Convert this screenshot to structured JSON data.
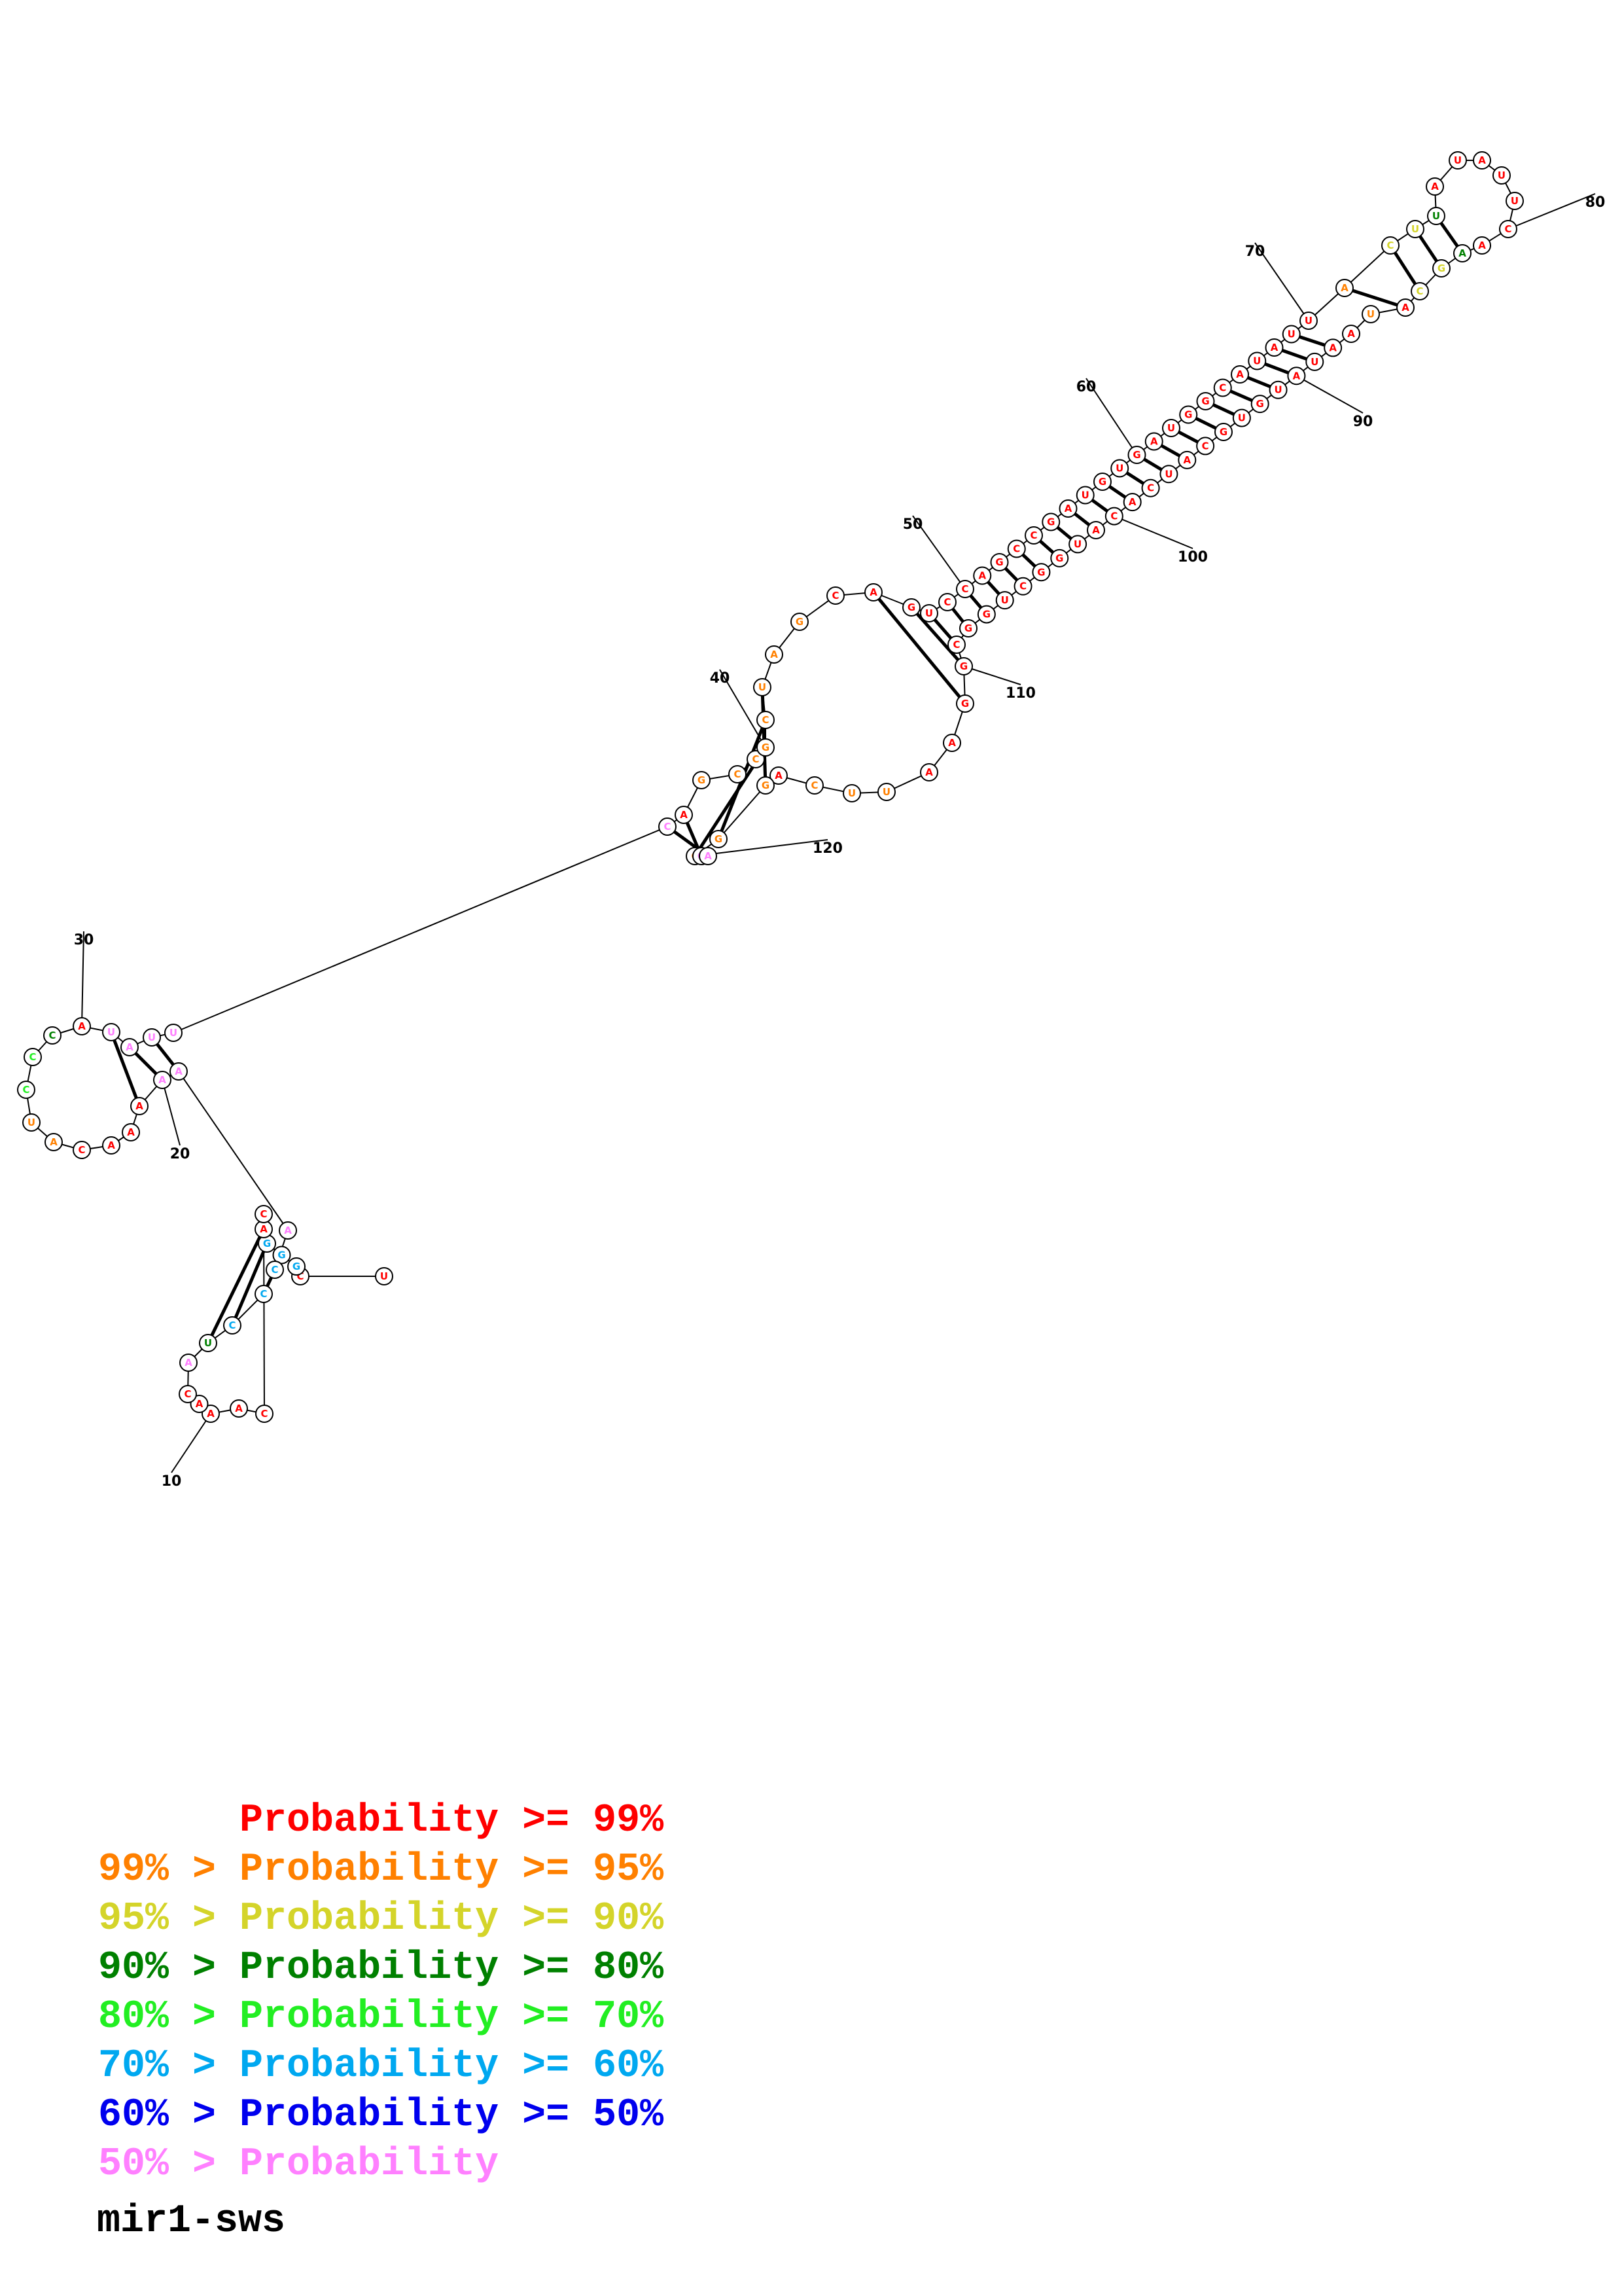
{
  "title": "mir1-sws",
  "colors": {
    "p99": "#ff0000",
    "p95": "#ff8000",
    "p90": "#d4d42a",
    "p80": "#008000",
    "p70": "#22ee22",
    "p60": "#00a8f0",
    "p50": "#0000ee",
    "plow": "#ff80ff"
  },
  "legend": [
    {
      "text": "      Probability >= 99%",
      "color": "p99"
    },
    {
      "text": "99% > Probability >= 95%",
      "color": "p95"
    },
    {
      "text": "95% > Probability >= 90%",
      "color": "p90"
    },
    {
      "text": "90% > Probability >= 80%",
      "color": "p80"
    },
    {
      "text": "80% > Probability >= 70%",
      "color": "p70"
    },
    {
      "text": "70% > Probability >= 60%",
      "color": "p60"
    },
    {
      "text": "60% > Probability >= 50%",
      "color": "p50"
    },
    {
      "text": "50% > Probability",
      "color": "plow"
    }
  ],
  "nucleotides": [
    {
      "b": "U",
      "p": "p99"
    },
    {
      "b": "C",
      "p": "p99"
    },
    {
      "b": "G",
      "p": "p60"
    },
    {
      "b": "G",
      "p": "p60"
    },
    {
      "b": "G",
      "p": "p60"
    },
    {
      "b": "A",
      "p": "p99"
    },
    {
      "b": "C",
      "p": "p99"
    },
    {
      "b": "C",
      "p": "p99"
    },
    {
      "b": "A",
      "p": "p99"
    },
    {
      "b": "A",
      "p": "p99"
    },
    {
      "b": "A",
      "p": "p99"
    },
    {
      "b": "C",
      "p": "p99"
    },
    {
      "b": "A",
      "p": "plow"
    },
    {
      "b": "U",
      "p": "p80"
    },
    {
      "b": "C",
      "p": "p60"
    },
    {
      "b": "C",
      "p": "p60"
    },
    {
      "b": "C",
      "p": "p60"
    },
    {
      "b": "A",
      "p": "plow"
    },
    {
      "b": "A",
      "p": "plow"
    },
    {
      "b": "A",
      "p": "plow"
    },
    {
      "b": "A",
      "p": "p99"
    },
    {
      "b": "A",
      "p": "p99"
    },
    {
      "b": "A",
      "p": "p99"
    },
    {
      "b": "C",
      "p": "p99"
    },
    {
      "b": "A",
      "p": "p95"
    },
    {
      "b": "U",
      "p": "p95"
    },
    {
      "b": "C",
      "p": "p70"
    },
    {
      "b": "C",
      "p": "p70"
    },
    {
      "b": "C",
      "p": "p80"
    },
    {
      "b": "A",
      "p": "p99"
    },
    {
      "b": "U",
      "p": "plow"
    },
    {
      "b": "A",
      "p": "plow"
    },
    {
      "b": "U",
      "p": "plow"
    },
    {
      "b": "U",
      "p": "plow"
    },
    {
      "b": "C",
      "p": "plow"
    },
    {
      "b": "A",
      "p": "p99"
    },
    {
      "b": "G",
      "p": "p95"
    },
    {
      "b": "C",
      "p": "p95"
    },
    {
      "b": "C",
      "p": "p95"
    },
    {
      "b": "G",
      "p": "p95"
    },
    {
      "b": "C",
      "p": "p95"
    },
    {
      "b": "U",
      "p": "p95"
    },
    {
      "b": "A",
      "p": "p95"
    },
    {
      "b": "G",
      "p": "p95"
    },
    {
      "b": "C",
      "p": "p99"
    },
    {
      "b": "A",
      "p": "p99"
    },
    {
      "b": "G",
      "p": "p99"
    },
    {
      "b": "U",
      "p": "p99"
    },
    {
      "b": "C",
      "p": "p99"
    },
    {
      "b": "C",
      "p": "p99"
    },
    {
      "b": "A",
      "p": "p99"
    },
    {
      "b": "G",
      "p": "p99"
    },
    {
      "b": "C",
      "p": "p99"
    },
    {
      "b": "C",
      "p": "p99"
    },
    {
      "b": "G",
      "p": "p99"
    },
    {
      "b": "A",
      "p": "p99"
    },
    {
      "b": "U",
      "p": "p99"
    },
    {
      "b": "G",
      "p": "p99"
    },
    {
      "b": "U",
      "p": "p99"
    },
    {
      "b": "G",
      "p": "p99"
    },
    {
      "b": "A",
      "p": "p99"
    },
    {
      "b": "U",
      "p": "p99"
    },
    {
      "b": "G",
      "p": "p99"
    },
    {
      "b": "G",
      "p": "p99"
    },
    {
      "b": "C",
      "p": "p99"
    },
    {
      "b": "A",
      "p": "p99"
    },
    {
      "b": "U",
      "p": "p99"
    },
    {
      "b": "A",
      "p": "p99"
    },
    {
      "b": "U",
      "p": "p99"
    },
    {
      "b": "U",
      "p": "p99"
    },
    {
      "b": "A",
      "p": "p95"
    },
    {
      "b": "C",
      "p": "p90"
    },
    {
      "b": "U",
      "p": "p90"
    },
    {
      "b": "U",
      "p": "p80"
    },
    {
      "b": "A",
      "p": "p99"
    },
    {
      "b": "U",
      "p": "p99"
    },
    {
      "b": "A",
      "p": "p99"
    },
    {
      "b": "U",
      "p": "p99"
    },
    {
      "b": "U",
      "p": "p99"
    },
    {
      "b": "C",
      "p": "p99"
    },
    {
      "b": "A",
      "p": "p99"
    },
    {
      "b": "A",
      "p": "p80"
    },
    {
      "b": "G",
      "p": "p90"
    },
    {
      "b": "C",
      "p": "p90"
    },
    {
      "b": "A",
      "p": "p99"
    },
    {
      "b": "U",
      "p": "p95"
    },
    {
      "b": "A",
      "p": "p99"
    },
    {
      "b": "A",
      "p": "p99"
    },
    {
      "b": "U",
      "p": "p99"
    },
    {
      "b": "A",
      "p": "p99"
    },
    {
      "b": "U",
      "p": "p99"
    },
    {
      "b": "G",
      "p": "p99"
    },
    {
      "b": "U",
      "p": "p99"
    },
    {
      "b": "G",
      "p": "p99"
    },
    {
      "b": "C",
      "p": "p99"
    },
    {
      "b": "A",
      "p": "p99"
    },
    {
      "b": "U",
      "p": "p99"
    },
    {
      "b": "C",
      "p": "p99"
    },
    {
      "b": "A",
      "p": "p99"
    },
    {
      "b": "C",
      "p": "p99"
    },
    {
      "b": "A",
      "p": "p99"
    },
    {
      "b": "U",
      "p": "p99"
    },
    {
      "b": "G",
      "p": "p99"
    },
    {
      "b": "G",
      "p": "p99"
    },
    {
      "b": "C",
      "p": "p99"
    },
    {
      "b": "U",
      "p": "p99"
    },
    {
      "b": "G",
      "p": "p99"
    },
    {
      "b": "G",
      "p": "p99"
    },
    {
      "b": "C",
      "p": "p99"
    },
    {
      "b": "G",
      "p": "p99"
    },
    {
      "b": "G",
      "p": "p99"
    },
    {
      "b": "A",
      "p": "p99"
    },
    {
      "b": "A",
      "p": "p99"
    },
    {
      "b": "U",
      "p": "p95"
    },
    {
      "b": "U",
      "p": "p95"
    },
    {
      "b": "C",
      "p": "p95"
    },
    {
      "b": "A",
      "p": "p99"
    },
    {
      "b": "G",
      "p": "p95"
    },
    {
      "b": "G",
      "p": "p95"
    },
    {
      "b": "C",
      "p": "p95"
    },
    {
      "b": "G",
      "p": "plow"
    },
    {
      "b": "A",
      "p": "plow"
    }
  ],
  "index_labels": [
    "10",
    "20",
    "30",
    "40",
    "50",
    "60",
    "70",
    "80",
    "90",
    "100",
    "110",
    "120"
  ]
}
